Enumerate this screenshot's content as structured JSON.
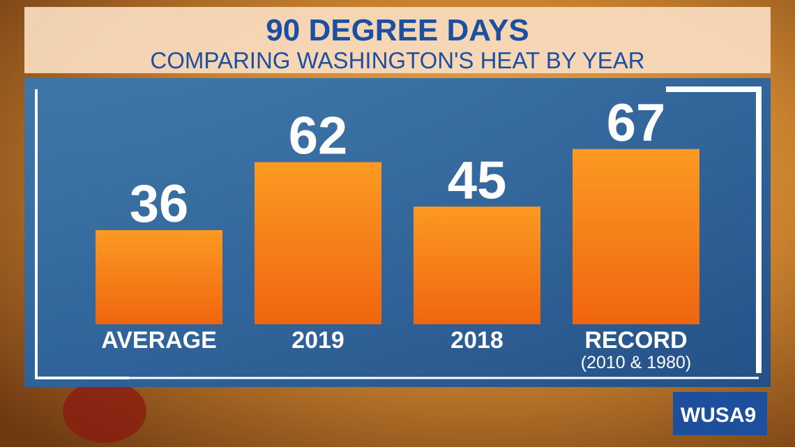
{
  "chart_data": {
    "type": "bar",
    "title": "90 DEGREE DAYS",
    "subtitle": "COMPARING WASHINGTON'S HEAT BY YEAR",
    "categories": [
      "AVERAGE",
      "2019",
      "2018",
      "RECORD"
    ],
    "values": [
      36,
      62,
      45,
      67
    ],
    "annotation": "(2010 & 1980)",
    "color": "#f7901e"
  },
  "logo": "WUSA9"
}
